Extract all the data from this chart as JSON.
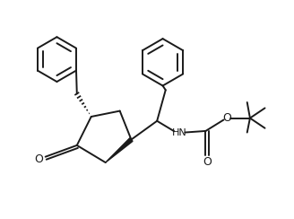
{
  "bg_color": "#ffffff",
  "line_color": "#1a1a1a",
  "line_width": 1.4,
  "fig_width": 3.28,
  "fig_height": 2.44,
  "dpi": 100,
  "xlim": [
    0,
    10
  ],
  "ylim": [
    0,
    7.6
  ]
}
